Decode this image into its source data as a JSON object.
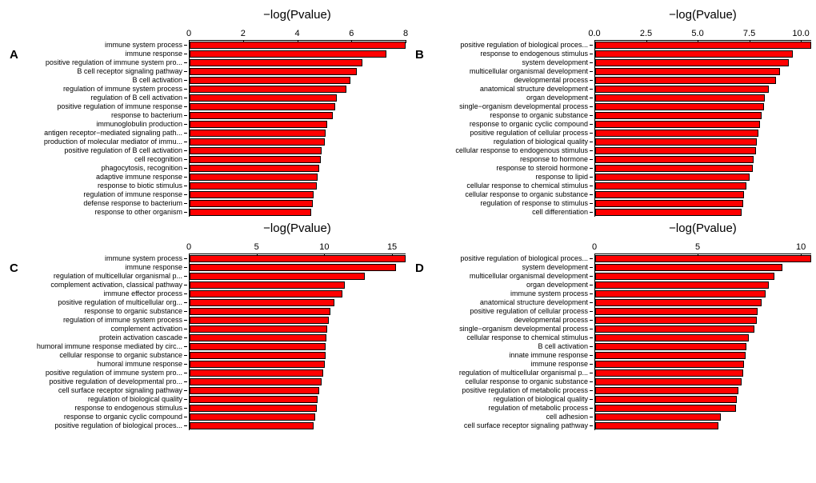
{
  "global": {
    "axis_title": "−log(Pvalue)",
    "bar_color": "#ff0000",
    "bar_border": "#000000",
    "background_color": "#ffffff",
    "font_family": "Arial",
    "title_fontsize": 15,
    "tick_fontsize": 11,
    "category_fontsize": 9
  },
  "panels": [
    {
      "letter": "A",
      "type": "bar",
      "xlim": [
        0,
        8
      ],
      "ticks": [
        0,
        2,
        4,
        6,
        8
      ],
      "categories": [
        "immune system process",
        "immune response",
        "positive regulation of immune system pro...",
        "B cell receptor signaling pathway",
        "B cell activation",
        "regulation of immune system process",
        "regulation of B cell activation",
        "positive regulation of immune response",
        "response to bacterium",
        "immunoglobulin production",
        "antigen receptor−mediated signaling path...",
        "production of molecular mediator of immu...",
        "positive regulation of B cell activation",
        "cell recognition",
        "phagocytosis, recognition",
        "adaptive immune response",
        "response to biotic stimulus",
        "regulation of immune response",
        "defense response to bacterium",
        "response to other organism"
      ],
      "values": [
        8.0,
        7.3,
        6.4,
        6.2,
        5.95,
        5.8,
        5.45,
        5.4,
        5.3,
        5.1,
        5.05,
        5.0,
        4.9,
        4.85,
        4.8,
        4.75,
        4.7,
        4.6,
        4.55,
        4.5
      ]
    },
    {
      "letter": "B",
      "type": "bar",
      "xlim": [
        0,
        10.5
      ],
      "ticks": [
        0.0,
        2.5,
        5.0,
        7.5,
        10.0
      ],
      "categories": [
        "positive regulation of biological proces...",
        "response to endogenous stimulus",
        "system development",
        "multicellular organismal development",
        "developmental process",
        "anatomical structure development",
        "organ development",
        "single−organism developmental process",
        "response to organic substance",
        "response to organic cyclic compound",
        "positive regulation of cellular process",
        "regulation of biological quality",
        "cellular response to endogenous stimulus",
        "response to hormone",
        "response to steroid hormone",
        "response to lipid",
        "cellular response to chemical stimulus",
        "cellular response to organic substance",
        "regulation of response to stimulus",
        "cell differentiation"
      ],
      "values": [
        10.5,
        9.6,
        9.4,
        9.0,
        8.8,
        8.45,
        8.25,
        8.2,
        8.1,
        8.0,
        7.95,
        7.85,
        7.8,
        7.7,
        7.65,
        7.5,
        7.35,
        7.25,
        7.2,
        7.1
      ]
    },
    {
      "letter": "C",
      "type": "bar",
      "xlim": [
        0,
        16
      ],
      "ticks": [
        0,
        5,
        10,
        15
      ],
      "categories": [
        "immune system process",
        "immune response",
        "regulation of multicellular organismal p...",
        "complement activation, classical pathway",
        "immune effector process",
        "positive regulation of multicellular org...",
        "response to organic substance",
        "regulation of immune system process",
        "complement activation",
        "protein activation cascade",
        "humoral immune response mediated by circ...",
        "cellular response to organic substance",
        "humoral immune response",
        "positive regulation of immune system pro...",
        "positive regulation of developmental pro...",
        "cell surface receptor signaling pathway",
        "regulation of biological quality",
        "response to endogenous stimulus",
        "response to organic cyclic compound",
        "positive regulation of biological proces..."
      ],
      "values": [
        16.0,
        15.3,
        13.0,
        11.5,
        11.3,
        10.7,
        10.4,
        10.3,
        10.2,
        10.15,
        10.1,
        10.05,
        10.0,
        9.9,
        9.8,
        9.6,
        9.5,
        9.4,
        9.3,
        9.2
      ]
    },
    {
      "letter": "D",
      "type": "bar",
      "xlim": [
        0,
        10.5
      ],
      "ticks": [
        0,
        5,
        10
      ],
      "categories": [
        "positive regulation of biological proces...",
        "system development",
        "multicellular organismal development",
        "organ development",
        "immune system process",
        "anatomical structure development",
        "positive regulation of cellular process",
        "developmental process",
        "single−organism developmental process",
        "cellular response to chemical stimulus",
        "B cell activation",
        "innate immune response",
        "immune response",
        "regulation of multicellular organismal p...",
        "cellular response to organic substance",
        "positive regulation of metabolic process",
        "regulation of biological quality",
        "regulation of metabolic process",
        "cell adhesion",
        "cell surface receptor signaling pathway"
      ],
      "values": [
        10.5,
        9.1,
        8.7,
        8.45,
        8.3,
        8.1,
        7.9,
        7.85,
        7.75,
        7.45,
        7.35,
        7.3,
        7.25,
        7.2,
        7.1,
        6.95,
        6.9,
        6.85,
        6.1,
        6.0
      ]
    }
  ]
}
